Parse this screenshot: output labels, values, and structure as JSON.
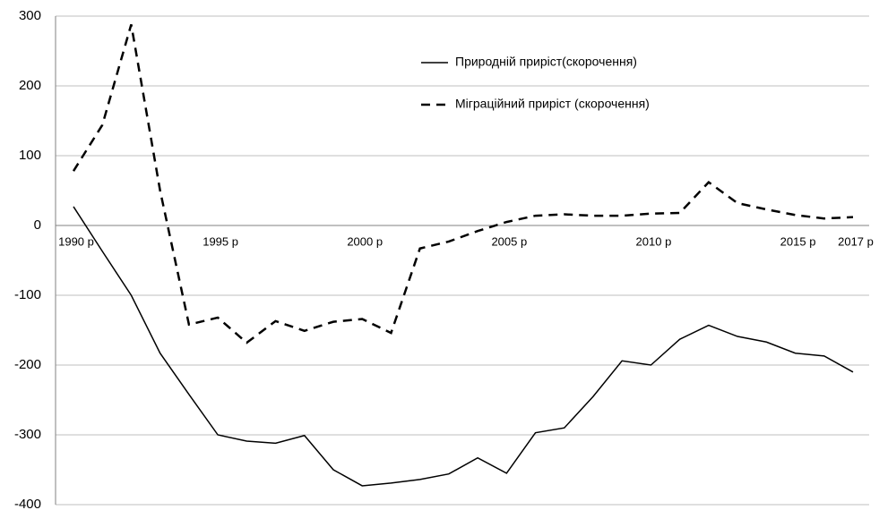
{
  "chart_data": {
    "type": "line",
    "categories": [
      "1990 р",
      null,
      null,
      null,
      null,
      "1995 р",
      null,
      null,
      null,
      null,
      "2000 р",
      null,
      null,
      null,
      null,
      "2005 р",
      null,
      null,
      null,
      null,
      "2010 р",
      null,
      null,
      null,
      null,
      "2015 р",
      null,
      "2017 р"
    ],
    "series": [
      {
        "name": "Природній приріст(скорочення)",
        "color": "#000000",
        "style": "solid",
        "values": [
          27,
          -37,
          -100,
          -183,
          -242,
          -300,
          -309,
          -312,
          -301,
          -350,
          -373,
          -369,
          -364,
          -356,
          -333,
          -355,
          -297,
          -290,
          -245,
          -194,
          -200,
          -163,
          -143,
          -159,
          -167,
          -183,
          -187,
          -210
        ]
      },
      {
        "name": "Міграційний приріст (скорочення)",
        "color": "#000000",
        "style": "dashed",
        "values": [
          78,
          144,
          288,
          50,
          -142,
          -132,
          -168,
          -137,
          -151,
          -138,
          -134,
          -154,
          -33,
          -23,
          -8,
          5,
          14,
          16,
          14,
          14,
          17,
          18,
          62,
          32,
          23,
          15,
          10,
          12
        ]
      }
    ],
    "ylim": [
      -400,
      300
    ],
    "yticks": [
      -400,
      -300,
      -200,
      -100,
      0,
      100,
      200,
      300
    ],
    "grid": true,
    "legend": "top"
  }
}
